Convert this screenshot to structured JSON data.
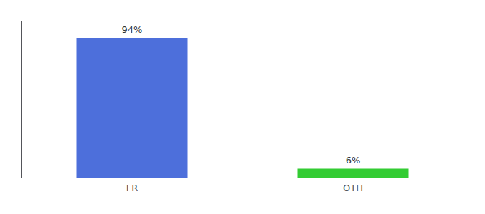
{
  "chart_data": {
    "type": "bar",
    "categories": [
      "FR",
      "OTH"
    ],
    "values": [
      94,
      6
    ],
    "colors": [
      "#4d6fdb",
      "#33cc33"
    ],
    "data_labels": true,
    "value_labels": [
      "94%",
      "6%"
    ],
    "ylim": [
      0,
      105
    ],
    "tick_labels": "x",
    "grid": false
  }
}
